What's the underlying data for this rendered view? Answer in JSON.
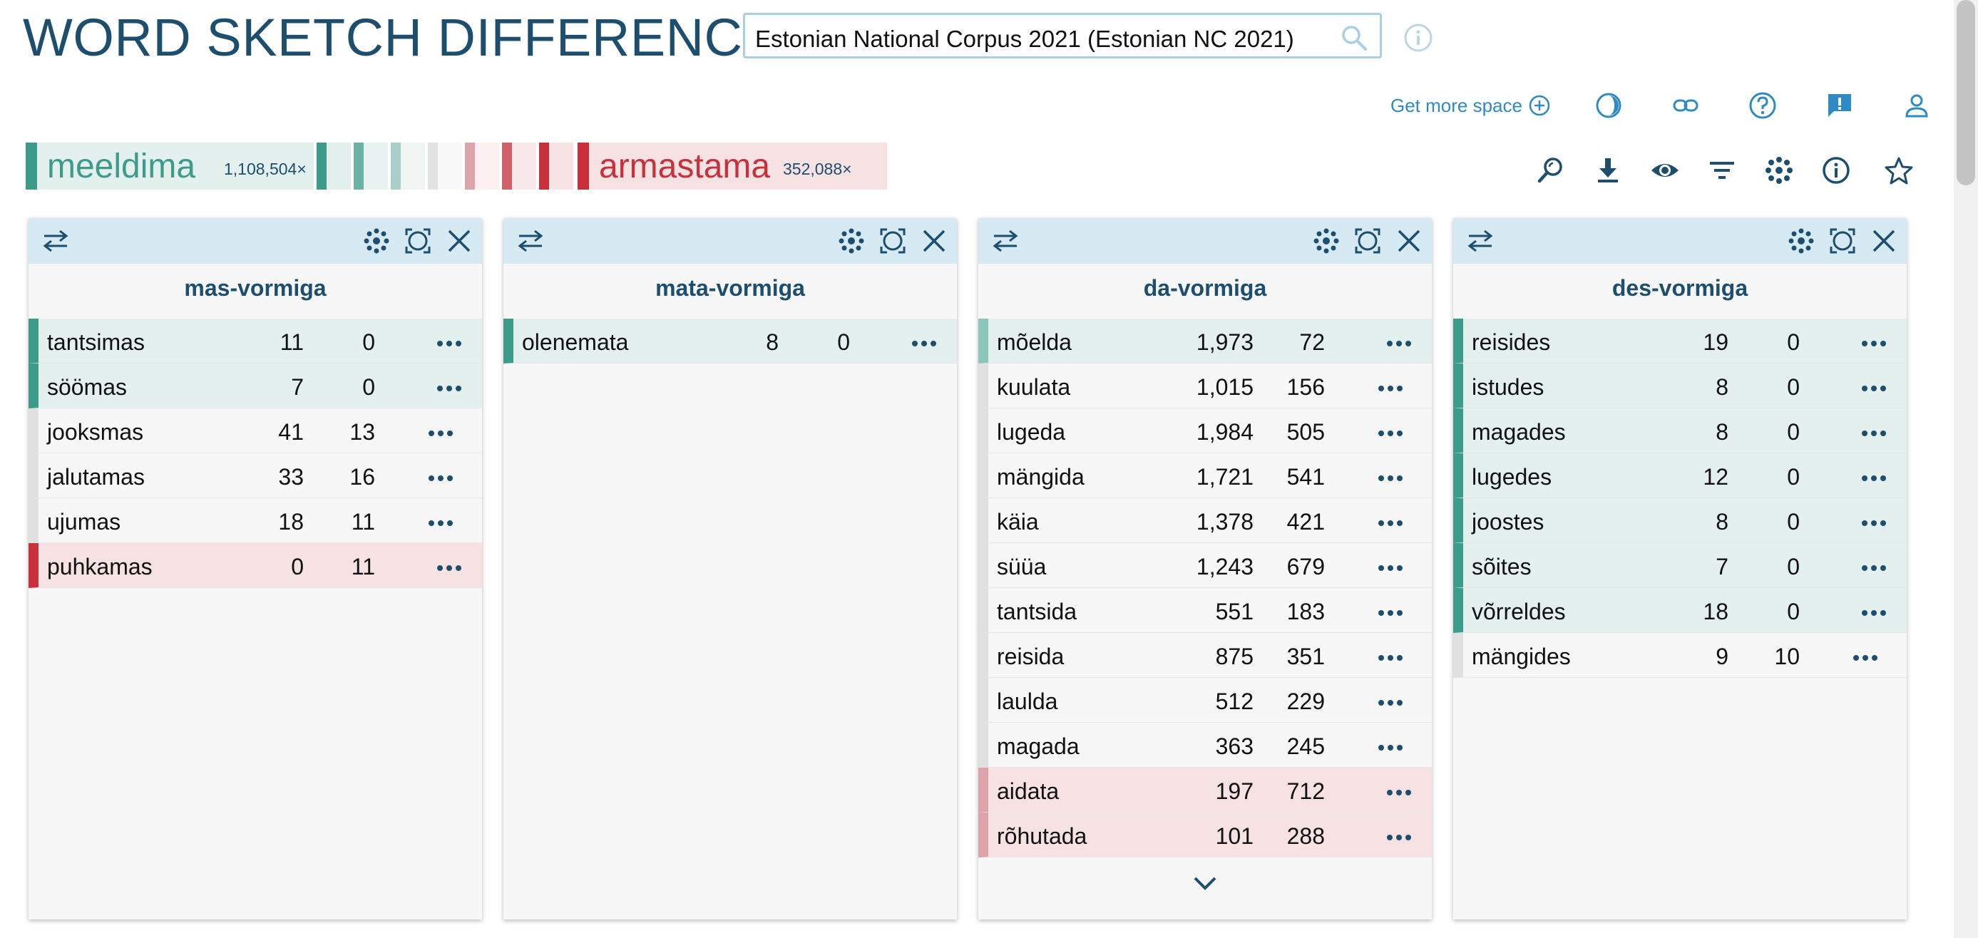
{
  "header": {
    "title": "WORD SKETCH DIFFERENCE",
    "corpus": "Estonian National Corpus 2021 (Estonian NC 2021)",
    "get_more_space": "Get more space"
  },
  "headwords": {
    "first": {
      "word": "meeldima",
      "freq": "1,108,504×",
      "color": "#3d9b8a"
    },
    "second": {
      "word": "armastama",
      "freq": "352,088×",
      "color": "#c8313c"
    }
  },
  "icons": {
    "top": [
      "dark-mode-icon",
      "link-icon",
      "help-icon",
      "feedback-icon",
      "user-icon"
    ],
    "tools": [
      "zoom-search-icon",
      "download-icon",
      "view-icon",
      "filter-icon",
      "cluster-icon",
      "info-icon",
      "star-icon"
    ]
  },
  "panels": [
    {
      "title": "mas-vormiga",
      "rows": [
        {
          "word": "tantsimas",
          "f1": "11",
          "f2": "0",
          "kind": "pos"
        },
        {
          "word": "söömas",
          "f1": "7",
          "f2": "0",
          "kind": "pos"
        },
        {
          "word": "jooksmas",
          "f1": "41",
          "f2": "13",
          "kind": "neutral"
        },
        {
          "word": "jalutamas",
          "f1": "33",
          "f2": "16",
          "kind": "neutral"
        },
        {
          "word": "ujumas",
          "f1": "18",
          "f2": "11",
          "kind": "neutral"
        },
        {
          "word": "puhkamas",
          "f1": "0",
          "f2": "11",
          "kind": "neg"
        }
      ]
    },
    {
      "title": "mata-vormiga",
      "rows": [
        {
          "word": "olenemata",
          "f1": "8",
          "f2": "0",
          "kind": "pos"
        }
      ]
    },
    {
      "title": "da-vormiga",
      "rows": [
        {
          "word": "mõelda",
          "f1": "1,973",
          "f2": "72",
          "kind": "pos2"
        },
        {
          "word": "kuulata",
          "f1": "1,015",
          "f2": "156",
          "kind": "neutral"
        },
        {
          "word": "lugeda",
          "f1": "1,984",
          "f2": "505",
          "kind": "neutral"
        },
        {
          "word": "mängida",
          "f1": "1,721",
          "f2": "541",
          "kind": "neutral"
        },
        {
          "word": "käia",
          "f1": "1,378",
          "f2": "421",
          "kind": "neutral"
        },
        {
          "word": "süüa",
          "f1": "1,243",
          "f2": "679",
          "kind": "neutral"
        },
        {
          "word": "tantsida",
          "f1": "551",
          "f2": "183",
          "kind": "neutral"
        },
        {
          "word": "reisida",
          "f1": "875",
          "f2": "351",
          "kind": "neutral"
        },
        {
          "word": "laulda",
          "f1": "512",
          "f2": "229",
          "kind": "neutral"
        },
        {
          "word": "magada",
          "f1": "363",
          "f2": "245",
          "kind": "neutral"
        },
        {
          "word": "aidata",
          "f1": "197",
          "f2": "712",
          "kind": "neg2"
        },
        {
          "word": "rõhutada",
          "f1": "101",
          "f2": "288",
          "kind": "neg2"
        }
      ]
    },
    {
      "title": "des-vormiga",
      "rows": [
        {
          "word": "reisides",
          "f1": "19",
          "f2": "0",
          "kind": "pos"
        },
        {
          "word": "istudes",
          "f1": "8",
          "f2": "0",
          "kind": "pos"
        },
        {
          "word": "magades",
          "f1": "8",
          "f2": "0",
          "kind": "pos"
        },
        {
          "word": "lugedes",
          "f1": "12",
          "f2": "0",
          "kind": "pos"
        },
        {
          "word": "joostes",
          "f1": "8",
          "f2": "0",
          "kind": "pos"
        },
        {
          "word": "sõites",
          "f1": "7",
          "f2": "0",
          "kind": "pos"
        },
        {
          "word": "võrreldes",
          "f1": "18",
          "f2": "0",
          "kind": "pos"
        },
        {
          "word": "mängides",
          "f1": "9",
          "f2": "10",
          "kind": "neutral"
        }
      ]
    }
  ]
}
